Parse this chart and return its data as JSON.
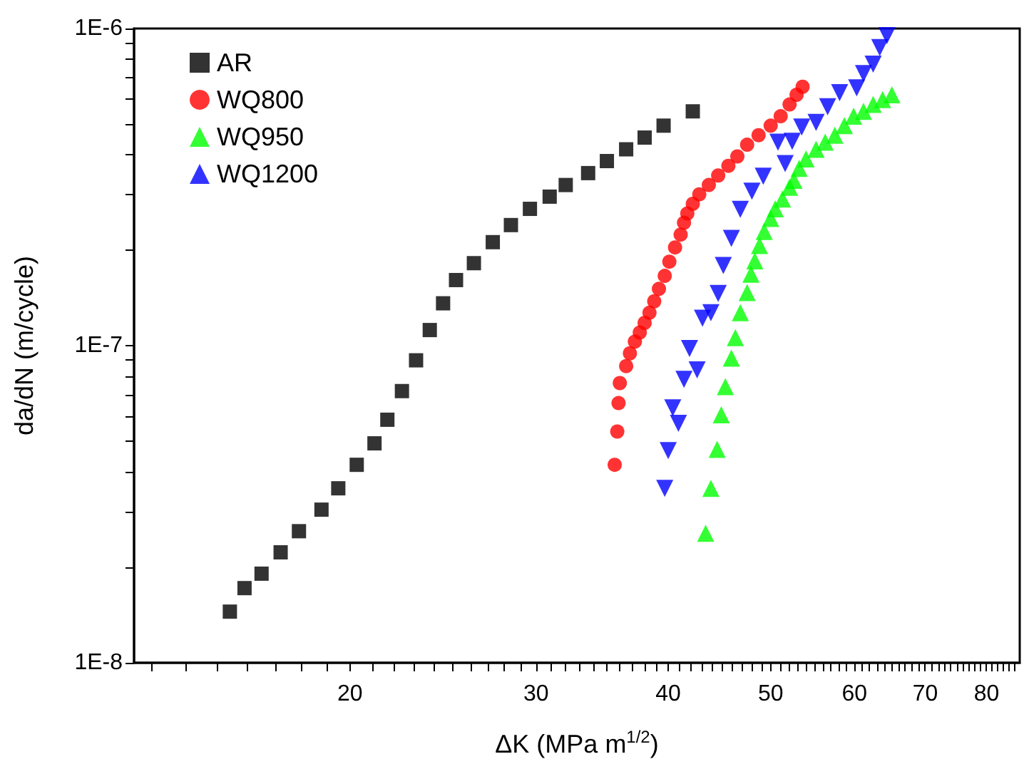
{
  "chart_data": {
    "type": "scatter",
    "xlabel": "ΔK (MPa m$^{1/2}$)",
    "ylabel": "da/dN (m/cycle)",
    "log": "xy",
    "legend": "top left",
    "xlim": [
      12.5,
      86
    ],
    "ylim": [
      1e-08,
      1e-06
    ],
    "xticks": [
      {
        "value": 13,
        "label": null
      },
      {
        "value": 14,
        "label": null
      },
      {
        "value": 15,
        "label": null
      },
      {
        "value": 16,
        "label": null
      },
      {
        "value": 17,
        "label": null
      },
      {
        "value": 18,
        "label": null
      },
      {
        "value": 19,
        "label": null
      },
      20,
      {
        "value": 21,
        "label": null
      },
      {
        "value": 22,
        "label": null
      },
      {
        "value": 23,
        "label": null
      },
      {
        "value": 24,
        "label": null
      },
      {
        "value": 25,
        "label": null
      },
      {
        "value": 26,
        "label": null
      },
      {
        "value": 27,
        "label": null
      },
      {
        "value": 28,
        "label": null
      },
      {
        "value": 29,
        "label": null
      },
      30,
      {
        "value": 31,
        "label": null
      },
      {
        "value": 32,
        "label": null
      },
      {
        "value": 33,
        "label": null
      },
      {
        "value": 34,
        "label": null
      },
      {
        "value": 35,
        "label": null
      },
      {
        "value": 36,
        "label": null
      },
      {
        "value": 37,
        "label": null
      },
      {
        "value": 38,
        "label": null
      },
      {
        "value": 39,
        "label": null
      },
      40,
      {
        "value": 41,
        "label": null
      },
      {
        "value": 42,
        "label": null
      },
      {
        "value": 43,
        "label": null
      },
      {
        "value": 44,
        "label": null
      },
      {
        "value": 45,
        "label": null
      },
      {
        "value": 46,
        "label": null
      },
      {
        "value": 47,
        "label": null
      },
      {
        "value": 48,
        "label": null
      },
      {
        "value": 49,
        "label": null
      },
      50,
      {
        "value": 51,
        "label": null
      },
      {
        "value": 52,
        "label": null
      },
      {
        "value": 53,
        "label": null
      },
      {
        "value": 54,
        "label": null
      },
      {
        "value": 55,
        "label": null
      },
      {
        "value": 56,
        "label": null
      },
      {
        "value": 57,
        "label": null
      },
      {
        "value": 58,
        "label": null
      },
      {
        "value": 59,
        "label": null
      },
      60,
      {
        "value": 61,
        "label": null
      },
      {
        "value": 62,
        "label": null
      },
      {
        "value": 63,
        "label": null
      },
      {
        "value": 64,
        "label": null
      },
      {
        "value": 65,
        "label": null
      },
      {
        "value": 66,
        "label": null
      },
      {
        "value": 67,
        "label": null
      },
      {
        "value": 68,
        "label": null
      },
      {
        "value": 69,
        "label": null
      },
      70,
      {
        "value": 71,
        "label": null
      },
      {
        "value": 72,
        "label": null
      },
      {
        "value": 73,
        "label": null
      },
      {
        "value": 74,
        "label": null
      },
      {
        "value": 75,
        "label": null
      },
      {
        "value": 76,
        "label": null
      },
      {
        "value": 77,
        "label": null
      },
      {
        "value": 78,
        "label": null
      },
      {
        "value": 79,
        "label": null
      },
      80,
      {
        "value": 81,
        "label": null
      },
      {
        "value": 82,
        "label": null
      },
      {
        "value": 83,
        "label": null
      },
      {
        "value": 84,
        "label": null
      },
      {
        "value": 85,
        "label": null
      }
    ],
    "yticks": [
      {
        "value": 1e-08,
        "label": "1E-8"
      },
      {
        "value": 2e-08,
        "label": null
      },
      {
        "value": 3e-08,
        "label": null
      },
      {
        "value": 4e-08,
        "label": null
      },
      {
        "value": 5e-08,
        "label": null
      },
      {
        "value": 6e-08,
        "label": null
      },
      {
        "value": 7e-08,
        "label": null
      },
      {
        "value": 8e-08,
        "label": null
      },
      {
        "value": 9e-08,
        "label": null
      },
      {
        "value": 1e-07,
        "label": "1E-7"
      },
      {
        "value": 2e-07,
        "label": null
      },
      {
        "value": 3e-07,
        "label": null
      },
      {
        "value": 4e-07,
        "label": null
      },
      {
        "value": 5e-07,
        "label": null
      },
      {
        "value": 6e-07,
        "label": null
      },
      {
        "value": 7e-07,
        "label": null
      },
      {
        "value": 8e-07,
        "label": null
      },
      {
        "value": 9e-07,
        "label": null
      },
      {
        "value": 1e-06,
        "label": "1E-6"
      }
    ],
    "series": [
      {
        "name": "AR",
        "color": "#000000",
        "marker": "square",
        "x": [
          15.4,
          15.9,
          16.5,
          17.2,
          17.9,
          18.8,
          19.5,
          20.3,
          21.1,
          21.7,
          22.4,
          23.1,
          23.8,
          24.5,
          25.2,
          26.2,
          27.3,
          28.4,
          29.6,
          30.9,
          32.0,
          33.6,
          35.0,
          36.5,
          38.0,
          39.6,
          42.2
        ],
        "values": [
          1.45e-08,
          1.72e-08,
          1.91e-08,
          2.23e-08,
          2.6e-08,
          3.04e-08,
          3.55e-08,
          4.21e-08,
          4.92e-08,
          5.84e-08,
          7.19e-08,
          8.99e-08,
          1.12e-07,
          1.36e-07,
          1.61e-07,
          1.82e-07,
          2.12e-07,
          2.4e-07,
          2.7e-07,
          2.95e-07,
          3.21e-07,
          3.5e-07,
          3.82e-07,
          4.16e-07,
          4.53e-07,
          4.94e-07,
          5.48e-07
        ]
      },
      {
        "name": "WQ800",
        "color": "#ff0000",
        "marker": "circle",
        "x": [
          35.6,
          35.8,
          35.9,
          36.0,
          36.5,
          36.8,
          37.2,
          37.6,
          38.0,
          38.4,
          38.8,
          39.2,
          39.7,
          40.1,
          40.6,
          41.1,
          41.4,
          41.7,
          42.2,
          42.8,
          43.7,
          44.6,
          45.6,
          46.5,
          47.5,
          48.7,
          50.0,
          51.1,
          52.1,
          52.9,
          53.6
        ],
        "values": [
          4.21e-08,
          5.36e-08,
          6.59e-08,
          7.62e-08,
          8.62e-08,
          9.46e-08,
          1.03e-07,
          1.1e-07,
          1.18e-07,
          1.27e-07,
          1.38e-07,
          1.51e-07,
          1.66e-07,
          1.84e-07,
          2.04e-07,
          2.24e-07,
          2.44e-07,
          2.61e-07,
          2.8e-07,
          3e-07,
          3.21e-07,
          3.44e-07,
          3.69e-07,
          3.95e-07,
          4.3e-07,
          4.61e-07,
          4.94e-07,
          5.29e-07,
          5.76e-07,
          6.18e-07,
          6.55e-07
        ]
      },
      {
        "name": "WQ950",
        "color": "#00ff00",
        "marker": "triangle",
        "x": [
          43.4,
          43.9,
          44.5,
          44.9,
          45.3,
          45.9,
          46.3,
          46.8,
          47.5,
          47.9,
          48.3,
          48.8,
          49.3,
          50.0,
          50.5,
          51.3,
          52.1,
          52.6,
          53.2,
          54.0,
          55.2,
          56.3,
          57.5,
          58.7,
          59.9,
          61.2,
          62.5,
          63.8,
          65.1
        ],
        "values": [
          2.56e-08,
          3.55e-08,
          4.71e-08,
          6.05e-08,
          7.43e-08,
          9.14e-08,
          1.06e-07,
          1.27e-07,
          1.47e-07,
          1.68e-07,
          1.85e-07,
          2.07e-07,
          2.29e-07,
          2.52e-07,
          2.7e-07,
          2.9e-07,
          3.16e-07,
          3.32e-07,
          3.62e-07,
          3.88e-07,
          4.16e-07,
          4.38e-07,
          4.61e-07,
          4.94e-07,
          5.29e-07,
          5.48e-07,
          5.76e-07,
          5.97e-07,
          6.18e-07
        ]
      },
      {
        "name": "WQ1200",
        "color": "#0000ff",
        "marker": "triangle-down",
        "x": [
          39.7,
          40.0,
          40.9,
          40.4,
          41.4,
          42.6,
          41.9,
          43.1,
          43.9,
          44.6,
          45.1,
          45.9,
          46.8,
          48.0,
          49.2,
          51.6,
          50.8,
          52.4,
          53.5,
          55.2,
          56.6,
          58.1,
          60.3,
          61.2,
          62.5,
          63.4,
          64.4
        ],
        "values": [
          3.55e-08,
          4.67e-08,
          5.69e-08,
          6.37e-08,
          7.83e-08,
          8.39e-08,
          9.79e-08,
          1.22e-07,
          1.27e-07,
          1.46e-07,
          1.79e-07,
          2.18e-07,
          2.69e-07,
          3.07e-07,
          3.42e-07,
          3.75e-07,
          4.38e-07,
          4.41e-07,
          4.89e-07,
          5.06e-07,
          5.67e-07,
          6.28e-07,
          6.5e-07,
          7.21e-07,
          7.72e-07,
          8.71e-07,
          9.5e-07
        ]
      }
    ]
  }
}
